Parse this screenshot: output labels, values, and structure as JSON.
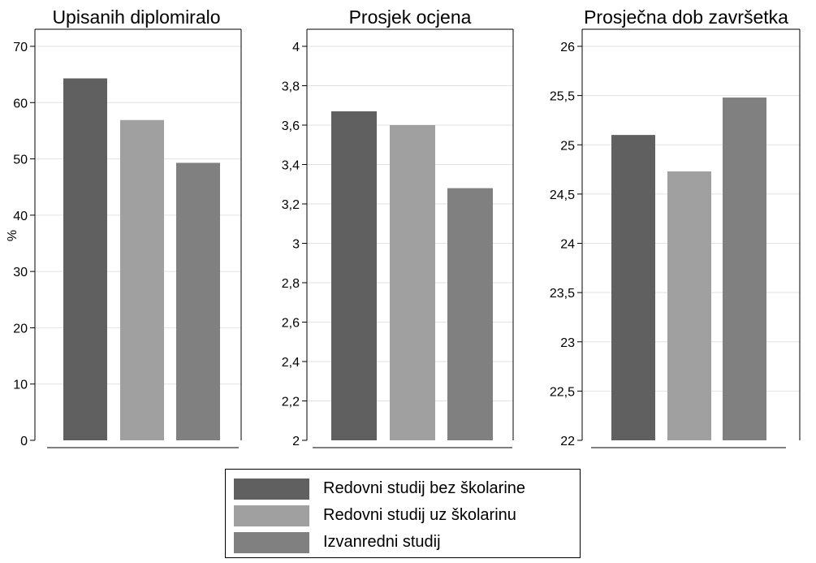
{
  "chart_data": [
    {
      "type": "bar",
      "title": "Upisanih diplomiralo",
      "ylabel": "%",
      "ylim": [
        0,
        70
      ],
      "yticks": [
        "0",
        "10",
        "20",
        "30",
        "40",
        "50",
        "60",
        "70"
      ],
      "ytick_values": [
        0,
        10,
        20,
        30,
        40,
        50,
        60,
        70
      ],
      "grid": true,
      "series": [
        {
          "name": "Redovni studij bez školarine",
          "values": [
            64.3
          ]
        },
        {
          "name": "Redovni studij uz školarinu",
          "values": [
            56.9
          ]
        },
        {
          "name": "Izvanredni studij",
          "values": [
            49.3
          ]
        }
      ]
    },
    {
      "type": "bar",
      "title": "Prosjek ocjena",
      "ylabel": "",
      "ylim": [
        2,
        4
      ],
      "yticks": [
        "2",
        "2,2",
        "2,4",
        "2,6",
        "2,8",
        "3",
        "3,2",
        "3,4",
        "3,6",
        "3,8",
        "4"
      ],
      "ytick_values": [
        2,
        2.2,
        2.4,
        2.6,
        2.8,
        3,
        3.2,
        3.4,
        3.6,
        3.8,
        4
      ],
      "grid": true,
      "series": [
        {
          "name": "Redovni studij bez školarine",
          "values": [
            3.67
          ]
        },
        {
          "name": "Redovni studij uz školarinu",
          "values": [
            3.6
          ]
        },
        {
          "name": "Izvanredni studij",
          "values": [
            3.28
          ]
        }
      ]
    },
    {
      "type": "bar",
      "title": "Prosječna dob završetka",
      "ylabel": "",
      "ylim": [
        22,
        26
      ],
      "yticks": [
        "22",
        "22,5",
        "23",
        "23,5",
        "24",
        "24,5",
        "25",
        "25,5",
        "26"
      ],
      "ytick_values": [
        22,
        22.5,
        23,
        23.5,
        24,
        24.5,
        25,
        25.5,
        26
      ],
      "grid": true,
      "series": [
        {
          "name": "Redovni studij bez školarine",
          "values": [
            25.1
          ]
        },
        {
          "name": "Redovni studij uz školarinu",
          "values": [
            24.73
          ]
        },
        {
          "name": "Izvanredni studij",
          "values": [
            25.48
          ]
        }
      ]
    }
  ],
  "legend": {
    "placement": "bottom-center",
    "items": [
      {
        "label": "Redovni studij bez školarine",
        "color": "#606060"
      },
      {
        "label": "Redovni studij uz školarinu",
        "color": "#a0a0a0"
      },
      {
        "label": "Izvanredni studij",
        "color": "#808080"
      }
    ]
  },
  "colors": [
    "#606060",
    "#a0a0a0",
    "#808080"
  ]
}
